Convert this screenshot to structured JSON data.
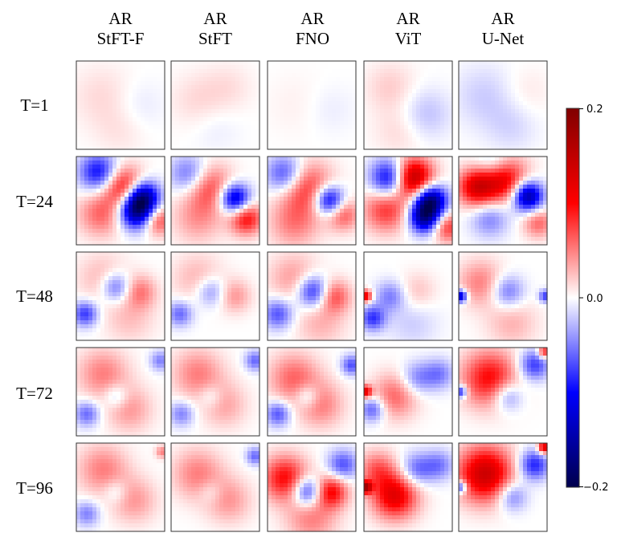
{
  "chart_data": {
    "type": "heatmap",
    "title": "",
    "columns": [
      {
        "line1": "AR",
        "line2": "StFT-F"
      },
      {
        "line1": "AR",
        "line2": "StFT"
      },
      {
        "line1": "AR",
        "line2": "FNO"
      },
      {
        "line1": "AR",
        "line2": "ViT"
      },
      {
        "line1": "AR",
        "line2": "U-Net"
      }
    ],
    "rows": [
      "T=1",
      "T=24",
      "T=48",
      "T=72",
      "T=96"
    ],
    "colorbar": {
      "min": -0.2,
      "max": 0.2,
      "colormap": "seismic",
      "ticks": [
        {
          "value": 0.2,
          "label": "0.2"
        },
        {
          "value": 0.0,
          "label": "0.0"
        },
        {
          "value": -0.2,
          "label": "−0.2"
        }
      ]
    },
    "panels": [
      [
        {
          "blobs": [
            [
              0.3,
              0.4,
              0.25,
              0.015
            ],
            [
              0.7,
              0.5,
              0.2,
              -0.01
            ],
            [
              0.5,
              0.8,
              0.2,
              0.01
            ]
          ]
        },
        {
          "blobs": [
            [
              0.3,
              0.45,
              0.22,
              0.015
            ],
            [
              0.65,
              0.3,
              0.2,
              0.012
            ],
            [
              0.5,
              0.75,
              0.2,
              -0.008
            ]
          ]
        },
        {
          "blobs": [
            [
              0.35,
              0.5,
              0.25,
              0.006
            ],
            [
              0.7,
              0.55,
              0.2,
              -0.008
            ]
          ]
        },
        {
          "blobs": [
            [
              0.3,
              0.3,
              0.2,
              0.02
            ],
            [
              0.7,
              0.6,
              0.2,
              -0.025
            ],
            [
              0.4,
              0.8,
              0.2,
              0.015
            ]
          ]
        },
        {
          "blobs": [
            [
              0.3,
              0.4,
              0.25,
              -0.02
            ],
            [
              0.75,
              0.35,
              0.2,
              0.01
            ],
            [
              0.6,
              0.75,
              0.2,
              -0.015
            ]
          ]
        }
      ],
      [
        {
          "blobs": [
            [
              0.55,
              0.35,
              0.16,
              0.11
            ],
            [
              0.75,
              0.45,
              0.13,
              -0.15
            ],
            [
              0.68,
              0.62,
              0.14,
              -0.16
            ],
            [
              0.25,
              0.18,
              0.15,
              -0.1
            ],
            [
              0.28,
              0.65,
              0.18,
              0.06
            ],
            [
              0.92,
              0.72,
              0.12,
              0.08
            ]
          ]
        },
        {
          "blobs": [
            [
              0.45,
              0.35,
              0.18,
              0.07
            ],
            [
              0.72,
              0.48,
              0.12,
              -0.14
            ],
            [
              0.85,
              0.7,
              0.13,
              0.1
            ],
            [
              0.2,
              0.2,
              0.15,
              -0.06
            ],
            [
              0.3,
              0.7,
              0.2,
              0.04
            ]
          ]
        },
        {
          "blobs": [
            [
              0.45,
              0.35,
              0.2,
              0.08
            ],
            [
              0.7,
              0.5,
              0.12,
              -0.13
            ],
            [
              0.85,
              0.65,
              0.13,
              0.07
            ],
            [
              0.2,
              0.2,
              0.15,
              -0.08
            ],
            [
              0.3,
              0.75,
              0.2,
              0.05
            ]
          ]
        },
        {
          "blobs": [
            [
              0.55,
              0.25,
              0.16,
              0.17
            ],
            [
              0.3,
              0.25,
              0.15,
              -0.13
            ],
            [
              0.75,
              0.5,
              0.13,
              -0.18
            ],
            [
              0.68,
              0.7,
              0.12,
              -0.14
            ],
            [
              0.25,
              0.6,
              0.18,
              0.08
            ],
            [
              0.95,
              0.8,
              0.12,
              0.08
            ]
          ]
        },
        {
          "blobs": [
            [
              0.5,
              0.25,
              0.18,
              0.13
            ],
            [
              0.2,
              0.35,
              0.15,
              0.12
            ],
            [
              0.78,
              0.45,
              0.12,
              -0.16
            ],
            [
              0.35,
              0.7,
              0.15,
              -0.05
            ],
            [
              0.9,
              0.75,
              0.12,
              0.06
            ],
            [
              0.4,
              0.1,
              0.15,
              -0.06
            ]
          ]
        }
      ],
      [
        {
          "blobs": [
            [
              0.45,
              0.4,
              0.12,
              -0.07
            ],
            [
              0.1,
              0.7,
              0.1,
              -0.08
            ],
            [
              0.72,
              0.45,
              0.13,
              0.05
            ],
            [
              0.3,
              0.3,
              0.2,
              0.03
            ],
            [
              0.6,
              0.75,
              0.2,
              0.025
            ]
          ]
        },
        {
          "blobs": [
            [
              0.45,
              0.45,
              0.12,
              -0.05
            ],
            [
              0.1,
              0.7,
              0.1,
              -0.06
            ],
            [
              0.72,
              0.5,
              0.13,
              0.04
            ],
            [
              0.3,
              0.3,
              0.2,
              0.03
            ]
          ]
        },
        {
          "blobs": [
            [
              0.52,
              0.45,
              0.13,
              -0.1
            ],
            [
              0.75,
              0.5,
              0.13,
              0.07
            ],
            [
              0.12,
              0.7,
              0.12,
              -0.07
            ],
            [
              0.3,
              0.3,
              0.2,
              0.04
            ],
            [
              0.6,
              0.8,
              0.2,
              0.03
            ]
          ]
        },
        {
          "blobs": [
            [
              0.3,
              0.5,
              0.12,
              -0.05
            ],
            [
              0.1,
              0.75,
              0.1,
              -0.08
            ],
            [
              0.6,
              0.45,
              0.15,
              0.025
            ],
            [
              0.55,
              0.8,
              0.2,
              -0.02
            ],
            [
              0.02,
              0.5,
              0.05,
              0.12
            ]
          ]
        },
        {
          "blobs": [
            [
              0.55,
              0.45,
              0.13,
              -0.06
            ],
            [
              0.25,
              0.35,
              0.18,
              0.05
            ],
            [
              0.02,
              0.5,
              0.05,
              -0.14
            ],
            [
              0.98,
              0.5,
              0.05,
              -0.08
            ],
            [
              0.6,
              0.8,
              0.2,
              0.03
            ]
          ]
        }
      ],
      [
        {
          "blobs": [
            [
              0.3,
              0.3,
              0.2,
              0.05
            ],
            [
              0.6,
              0.7,
              0.18,
              0.04
            ],
            [
              0.45,
              0.55,
              0.1,
              -0.04
            ],
            [
              0.12,
              0.75,
              0.1,
              -0.06
            ],
            [
              0.95,
              0.15,
              0.08,
              -0.05
            ]
          ]
        },
        {
          "blobs": [
            [
              0.3,
              0.3,
              0.2,
              0.05
            ],
            [
              0.6,
              0.65,
              0.18,
              0.035
            ],
            [
              0.45,
              0.55,
              0.1,
              -0.03
            ],
            [
              0.12,
              0.75,
              0.1,
              -0.05
            ],
            [
              0.95,
              0.15,
              0.08,
              -0.06
            ]
          ]
        },
        {
          "blobs": [
            [
              0.3,
              0.35,
              0.2,
              0.06
            ],
            [
              0.6,
              0.65,
              0.18,
              0.05
            ],
            [
              0.45,
              0.55,
              0.1,
              -0.05
            ],
            [
              0.12,
              0.75,
              0.1,
              -0.07
            ],
            [
              0.95,
              0.2,
              0.08,
              -0.07
            ]
          ]
        },
        {
          "blobs": [
            [
              0.35,
              0.55,
              0.18,
              0.06
            ],
            [
              0.6,
              0.35,
              0.13,
              -0.05
            ],
            [
              0.1,
              0.7,
              0.1,
              -0.07
            ],
            [
              0.02,
              0.5,
              0.05,
              0.12
            ],
            [
              0.85,
              0.3,
              0.12,
              -0.05
            ]
          ]
        },
        {
          "blobs": [
            [
              0.35,
              0.35,
              0.22,
              0.1
            ],
            [
              0.55,
              0.55,
              0.12,
              -0.06
            ],
            [
              0.85,
              0.2,
              0.12,
              -0.08
            ],
            [
              0.97,
              0.05,
              0.05,
              0.1
            ],
            [
              0.02,
              0.5,
              0.05,
              -0.1
            ]
          ]
        }
      ],
      [
        {
          "blobs": [
            [
              0.3,
              0.3,
              0.2,
              0.05
            ],
            [
              0.65,
              0.65,
              0.18,
              0.04
            ],
            [
              0.45,
              0.55,
              0.1,
              -0.03
            ],
            [
              0.12,
              0.8,
              0.1,
              -0.05
            ],
            [
              0.97,
              0.1,
              0.05,
              0.05
            ]
          ]
        },
        {
          "blobs": [
            [
              0.3,
              0.35,
              0.2,
              0.05
            ],
            [
              0.65,
              0.65,
              0.18,
              0.04
            ],
            [
              0.45,
              0.55,
              0.1,
              -0.025
            ],
            [
              0.95,
              0.15,
              0.07,
              -0.06
            ]
          ]
        },
        {
          "blobs": [
            [
              0.2,
              0.4,
              0.18,
              0.1
            ],
            [
              0.45,
              0.55,
              0.12,
              -0.1
            ],
            [
              0.72,
              0.55,
              0.13,
              0.1
            ],
            [
              0.85,
              0.25,
              0.12,
              -0.07
            ],
            [
              0.5,
              0.85,
              0.2,
              0.05
            ]
          ]
        },
        {
          "blobs": [
            [
              0.35,
              0.6,
              0.18,
              0.12
            ],
            [
              0.15,
              0.3,
              0.15,
              0.06
            ],
            [
              0.6,
              0.3,
              0.13,
              -0.06
            ],
            [
              0.85,
              0.25,
              0.12,
              -0.05
            ],
            [
              0.02,
              0.5,
              0.05,
              0.15
            ]
          ]
        },
        {
          "blobs": [
            [
              0.3,
              0.35,
              0.22,
              0.14
            ],
            [
              0.6,
              0.6,
              0.12,
              -0.06
            ],
            [
              0.85,
              0.25,
              0.12,
              -0.09
            ],
            [
              0.97,
              0.05,
              0.05,
              0.14
            ],
            [
              0.02,
              0.5,
              0.05,
              -0.1
            ]
          ]
        }
      ]
    ]
  }
}
